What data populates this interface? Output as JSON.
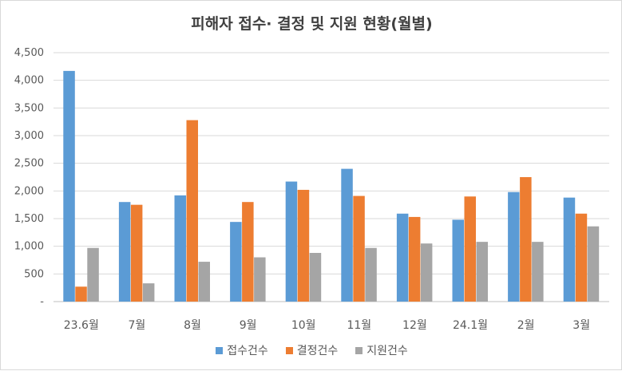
{
  "chart_data": {
    "type": "bar",
    "title": "피해자 접수· 결정 및 지원 현황(월별)",
    "categories": [
      "23.6월",
      "7월",
      "8월",
      "9월",
      "10월",
      "11월",
      "12월",
      "24.1월",
      "2월",
      "3월"
    ],
    "series": [
      {
        "name": "접수건수",
        "color": "#5b9bd5",
        "values": [
          4170,
          1800,
          1920,
          1440,
          2170,
          2400,
          1590,
          1480,
          1980,
          1880
        ]
      },
      {
        "name": "결정건수",
        "color": "#ed7d31",
        "values": [
          270,
          1750,
          3280,
          1800,
          2020,
          1910,
          1530,
          1900,
          2250,
          1590
        ]
      },
      {
        "name": "지원건수",
        "color": "#a5a5a5",
        "values": [
          970,
          330,
          720,
          800,
          880,
          970,
          1050,
          1080,
          1080,
          1360
        ]
      }
    ],
    "y_ticks": [
      "-",
      "500",
      "1,000",
      "1,500",
      "2,000",
      "2,500",
      "3,000",
      "3,500",
      "4,000",
      "4,500"
    ],
    "ylim": [
      0,
      4500
    ],
    "grid": true,
    "legend_position": "bottom"
  }
}
